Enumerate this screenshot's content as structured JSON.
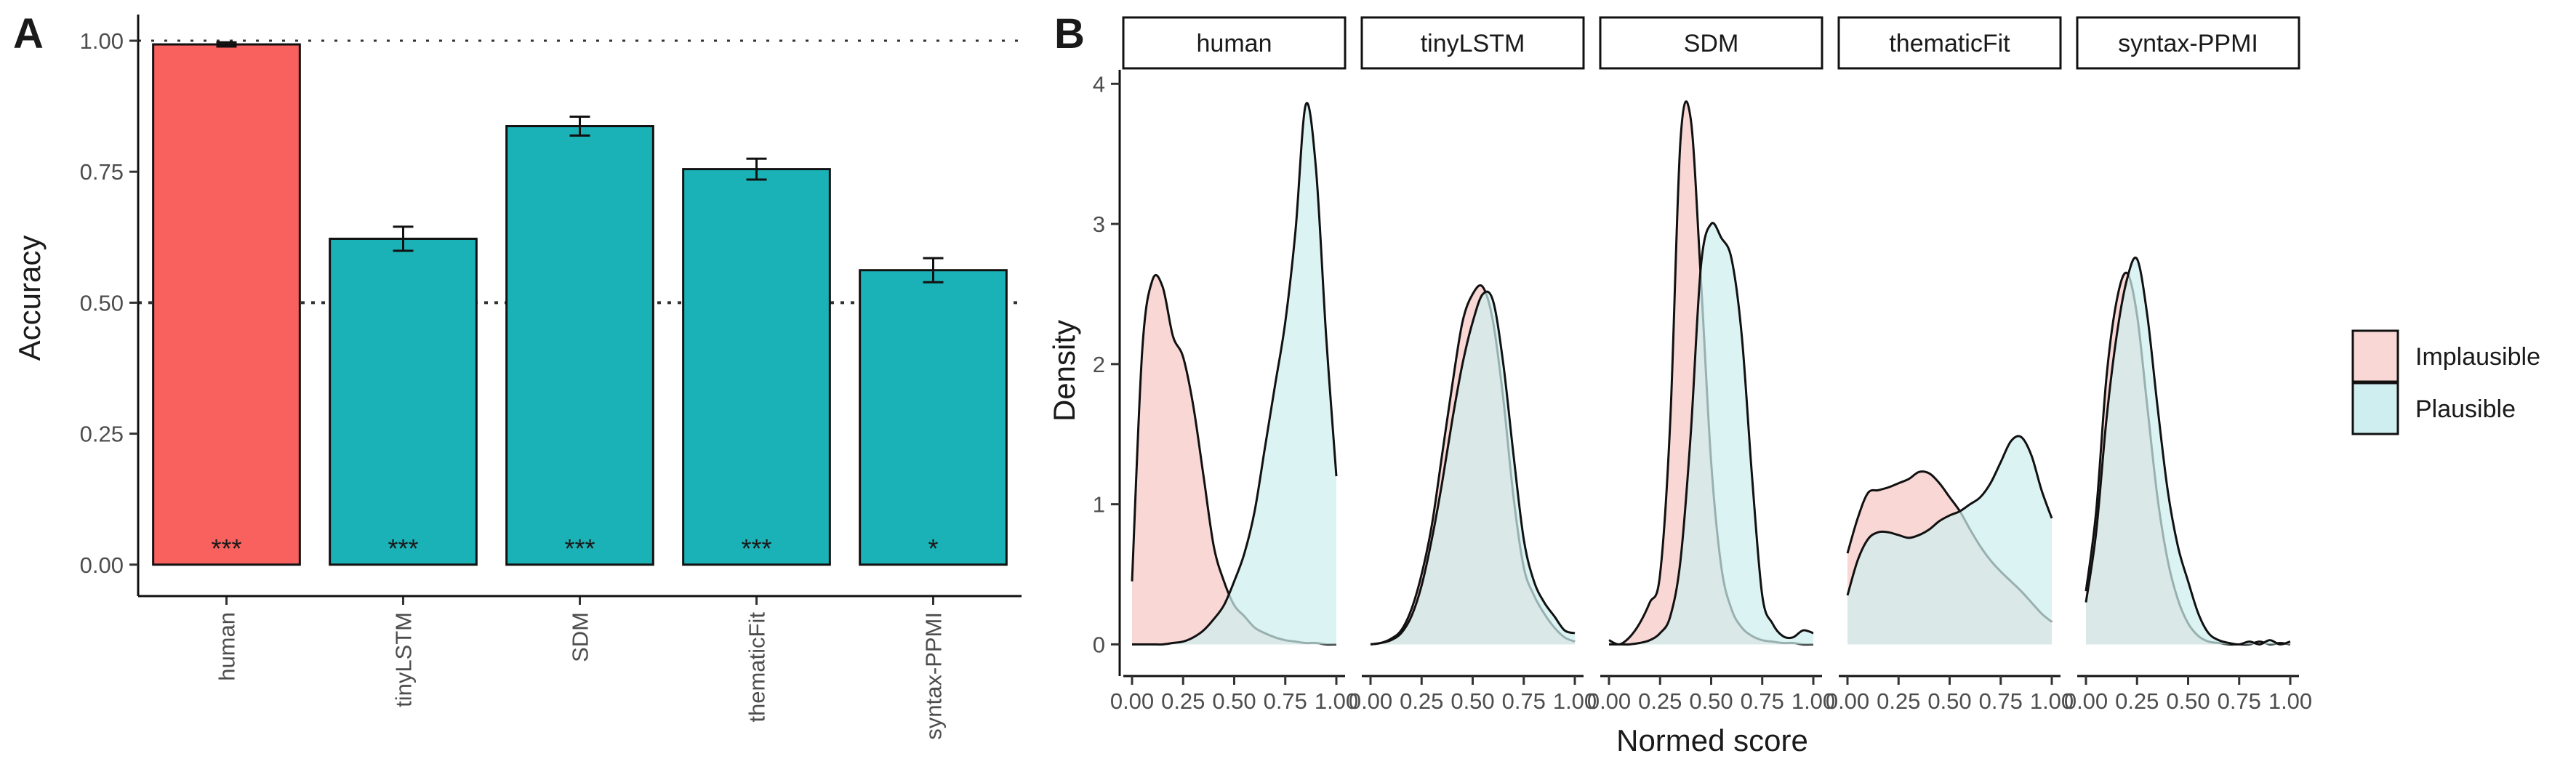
{
  "chart_data": [
    {
      "panel": "A",
      "type": "bar",
      "xlabel": "",
      "ylabel": "Accuracy",
      "ylim": [
        0,
        1
      ],
      "yticks": [
        "0.00",
        "0.25",
        "0.50",
        "0.75",
        "1.00"
      ],
      "categories": [
        "human",
        "tinyLSTM",
        "SDM",
        "thematicFit",
        "syntax-PPMI"
      ],
      "values": [
        0.993,
        0.622,
        0.837,
        0.755,
        0.562
      ],
      "errors": [
        0.004,
        0.023,
        0.018,
        0.02,
        0.023
      ],
      "significance": [
        "***",
        "***",
        "***",
        "***",
        "*"
      ],
      "colors": [
        "#F8615E",
        "#1AB2B7",
        "#1AB2B7",
        "#1AB2B7",
        "#1AB2B7"
      ],
      "reference_lines": [
        1.0,
        0.5
      ]
    },
    {
      "panel": "B",
      "type": "area",
      "xlabel": "Normed score",
      "ylabel": "Density",
      "ylim": [
        0,
        4.1
      ],
      "yticks": [
        "0",
        "1",
        "2",
        "3",
        "4"
      ],
      "xticks": [
        "0.00",
        "0.25",
        "0.50",
        "0.75",
        "1.00"
      ],
      "legend": {
        "position": "right",
        "entries": [
          {
            "label": "Implausible",
            "color": "#F8D7D5"
          },
          {
            "label": "Plausible",
            "color": "#CFEEF0"
          }
        ]
      },
      "facets": [
        {
          "label": "human",
          "x": [
            0,
            0.05,
            0.1,
            0.15,
            0.2,
            0.25,
            0.3,
            0.35,
            0.4,
            0.45,
            0.5,
            0.55,
            0.6,
            0.65,
            0.7,
            0.75,
            0.8,
            0.85,
            0.9,
            0.95,
            1.0
          ],
          "series": [
            {
              "name": "Implausible",
              "values": [
                0.45,
                2.1,
                2.6,
                2.55,
                2.2,
                2.05,
                1.7,
                1.2,
                0.7,
                0.45,
                0.28,
                0.2,
                0.12,
                0.08,
                0.05,
                0.03,
                0.02,
                0.01,
                0.01,
                0.0,
                0.0
              ]
            },
            {
              "name": "Plausible",
              "values": [
                0.0,
                0.0,
                0.0,
                0.0,
                0.01,
                0.02,
                0.05,
                0.1,
                0.18,
                0.28,
                0.45,
                0.65,
                0.95,
                1.4,
                1.85,
                2.3,
                2.95,
                3.85,
                3.4,
                2.2,
                1.2
              ]
            }
          ]
        },
        {
          "label": "tinyLSTM",
          "x": [
            0,
            0.05,
            0.1,
            0.15,
            0.2,
            0.25,
            0.3,
            0.35,
            0.4,
            0.45,
            0.5,
            0.55,
            0.6,
            0.65,
            0.7,
            0.75,
            0.8,
            0.85,
            0.9,
            0.95,
            1.0
          ],
          "series": [
            {
              "name": "Implausible",
              "values": [
                0.0,
                0.01,
                0.04,
                0.1,
                0.25,
                0.5,
                0.85,
                1.35,
                1.85,
                2.3,
                2.5,
                2.55,
                2.3,
                1.75,
                1.05,
                0.55,
                0.35,
                0.22,
                0.12,
                0.05,
                0.02
              ]
            },
            {
              "name": "Plausible",
              "values": [
                0.0,
                0.01,
                0.03,
                0.08,
                0.2,
                0.42,
                0.75,
                1.15,
                1.6,
                2.0,
                2.3,
                2.5,
                2.45,
                2.0,
                1.35,
                0.75,
                0.45,
                0.3,
                0.2,
                0.1,
                0.08
              ]
            }
          ]
        },
        {
          "label": "SDM",
          "x": [
            0,
            0.05,
            0.1,
            0.15,
            0.2,
            0.25,
            0.3,
            0.35,
            0.4,
            0.45,
            0.5,
            0.55,
            0.6,
            0.65,
            0.7,
            0.75,
            0.8,
            0.85,
            0.9,
            0.95,
            1.0
          ],
          "series": [
            {
              "name": "Implausible",
              "values": [
                0.03,
                0.0,
                0.05,
                0.15,
                0.3,
                0.5,
                1.6,
                3.6,
                3.75,
                2.6,
                1.3,
                0.55,
                0.25,
                0.12,
                0.06,
                0.03,
                0.02,
                0.01,
                0.01,
                0.0,
                0.0
              ]
            },
            {
              "name": "Plausible",
              "values": [
                0.0,
                0.0,
                0.0,
                0.01,
                0.03,
                0.08,
                0.2,
                0.6,
                1.5,
                2.7,
                3.0,
                2.9,
                2.75,
                2.2,
                1.2,
                0.35,
                0.15,
                0.06,
                0.05,
                0.1,
                0.08
              ]
            }
          ]
        },
        {
          "label": "thematicFit",
          "x": [
            0,
            0.05,
            0.1,
            0.15,
            0.2,
            0.25,
            0.3,
            0.35,
            0.4,
            0.45,
            0.5,
            0.55,
            0.6,
            0.65,
            0.7,
            0.75,
            0.8,
            0.85,
            0.9,
            0.95,
            1.0
          ],
          "series": [
            {
              "name": "Implausible",
              "values": [
                0.65,
                0.9,
                1.08,
                1.1,
                1.12,
                1.15,
                1.18,
                1.23,
                1.22,
                1.15,
                1.05,
                0.95,
                0.82,
                0.7,
                0.6,
                0.52,
                0.45,
                0.38,
                0.3,
                0.22,
                0.16
              ]
            },
            {
              "name": "Plausible",
              "values": [
                0.35,
                0.6,
                0.75,
                0.8,
                0.8,
                0.78,
                0.76,
                0.78,
                0.82,
                0.88,
                0.92,
                0.95,
                1.0,
                1.05,
                1.15,
                1.3,
                1.45,
                1.48,
                1.35,
                1.1,
                0.9
              ]
            }
          ]
        },
        {
          "label": "syntax-PPMI",
          "x": [
            0,
            0.05,
            0.1,
            0.15,
            0.2,
            0.25,
            0.3,
            0.35,
            0.4,
            0.45,
            0.5,
            0.55,
            0.6,
            0.65,
            0.7,
            0.75,
            0.8,
            0.85,
            0.9,
            0.95,
            1.0
          ],
          "series": [
            {
              "name": "Implausible",
              "values": [
                0.38,
                0.95,
                1.9,
                2.45,
                2.65,
                2.35,
                1.7,
                1.05,
                0.6,
                0.32,
                0.15,
                0.06,
                0.02,
                0.01,
                0.0,
                0.0,
                0.0,
                0.02,
                0.0,
                0.01,
                0.0
              ]
            },
            {
              "name": "Plausible",
              "values": [
                0.3,
                0.8,
                1.6,
                2.2,
                2.6,
                2.75,
                2.35,
                1.7,
                1.1,
                0.7,
                0.45,
                0.22,
                0.08,
                0.03,
                0.01,
                0.0,
                0.02,
                0.0,
                0.03,
                0.0,
                0.02
              ]
            }
          ]
        }
      ]
    }
  ]
}
